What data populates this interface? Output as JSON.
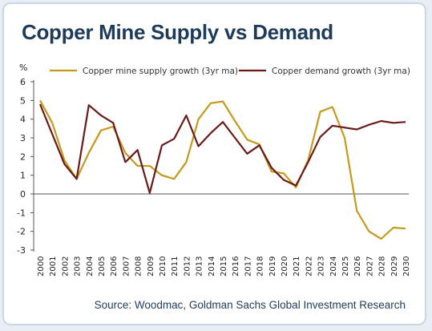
{
  "title": "Copper Mine Supply vs Demand",
  "source": "Source: Woodmac, Goldman Sachs Global Investment Research",
  "chart_data": {
    "type": "line",
    "ylabel": "%",
    "ylim": [
      -3,
      6
    ],
    "yticks": [
      -3,
      -2,
      -1,
      0,
      1,
      2,
      3,
      4,
      5,
      6
    ],
    "legend_position": "top",
    "x": [
      "2000",
      "2001",
      "2002",
      "2003",
      "2004",
      "2005",
      "2006",
      "2007",
      "2008",
      "2009",
      "2010",
      "2011",
      "2012",
      "2013",
      "2014",
      "2015",
      "2016",
      "2017",
      "2018",
      "2019",
      "2020",
      "2021",
      "2022",
      "2023",
      "2024",
      "2025",
      "2026",
      "2027",
      "2028",
      "2029",
      "2030"
    ],
    "series": [
      {
        "name": "Copper mine supply growth (3yr ma)",
        "color": "#c49a1c",
        "values": [
          5.0,
          3.8,
          1.8,
          0.8,
          2.2,
          3.4,
          3.6,
          2.2,
          1.5,
          1.5,
          1.0,
          0.8,
          1.7,
          4.0,
          4.85,
          4.95,
          3.9,
          2.9,
          2.65,
          1.2,
          1.1,
          0.35,
          1.8,
          4.4,
          4.65,
          3.0,
          -0.9,
          -2.0,
          -2.4,
          -1.8,
          -1.85
        ]
      },
      {
        "name": "Copper demand growth (3yr ma)",
        "color": "#6b1a1a",
        "values": [
          4.8,
          3.2,
          1.6,
          0.8,
          4.75,
          4.2,
          3.8,
          1.7,
          2.35,
          0.05,
          2.6,
          2.95,
          4.2,
          2.55,
          3.25,
          3.85,
          3.0,
          2.15,
          2.6,
          1.4,
          0.75,
          0.45,
          1.7,
          3.05,
          3.65,
          3.55,
          3.45,
          3.7,
          3.9,
          3.8,
          3.85
        ]
      }
    ]
  }
}
